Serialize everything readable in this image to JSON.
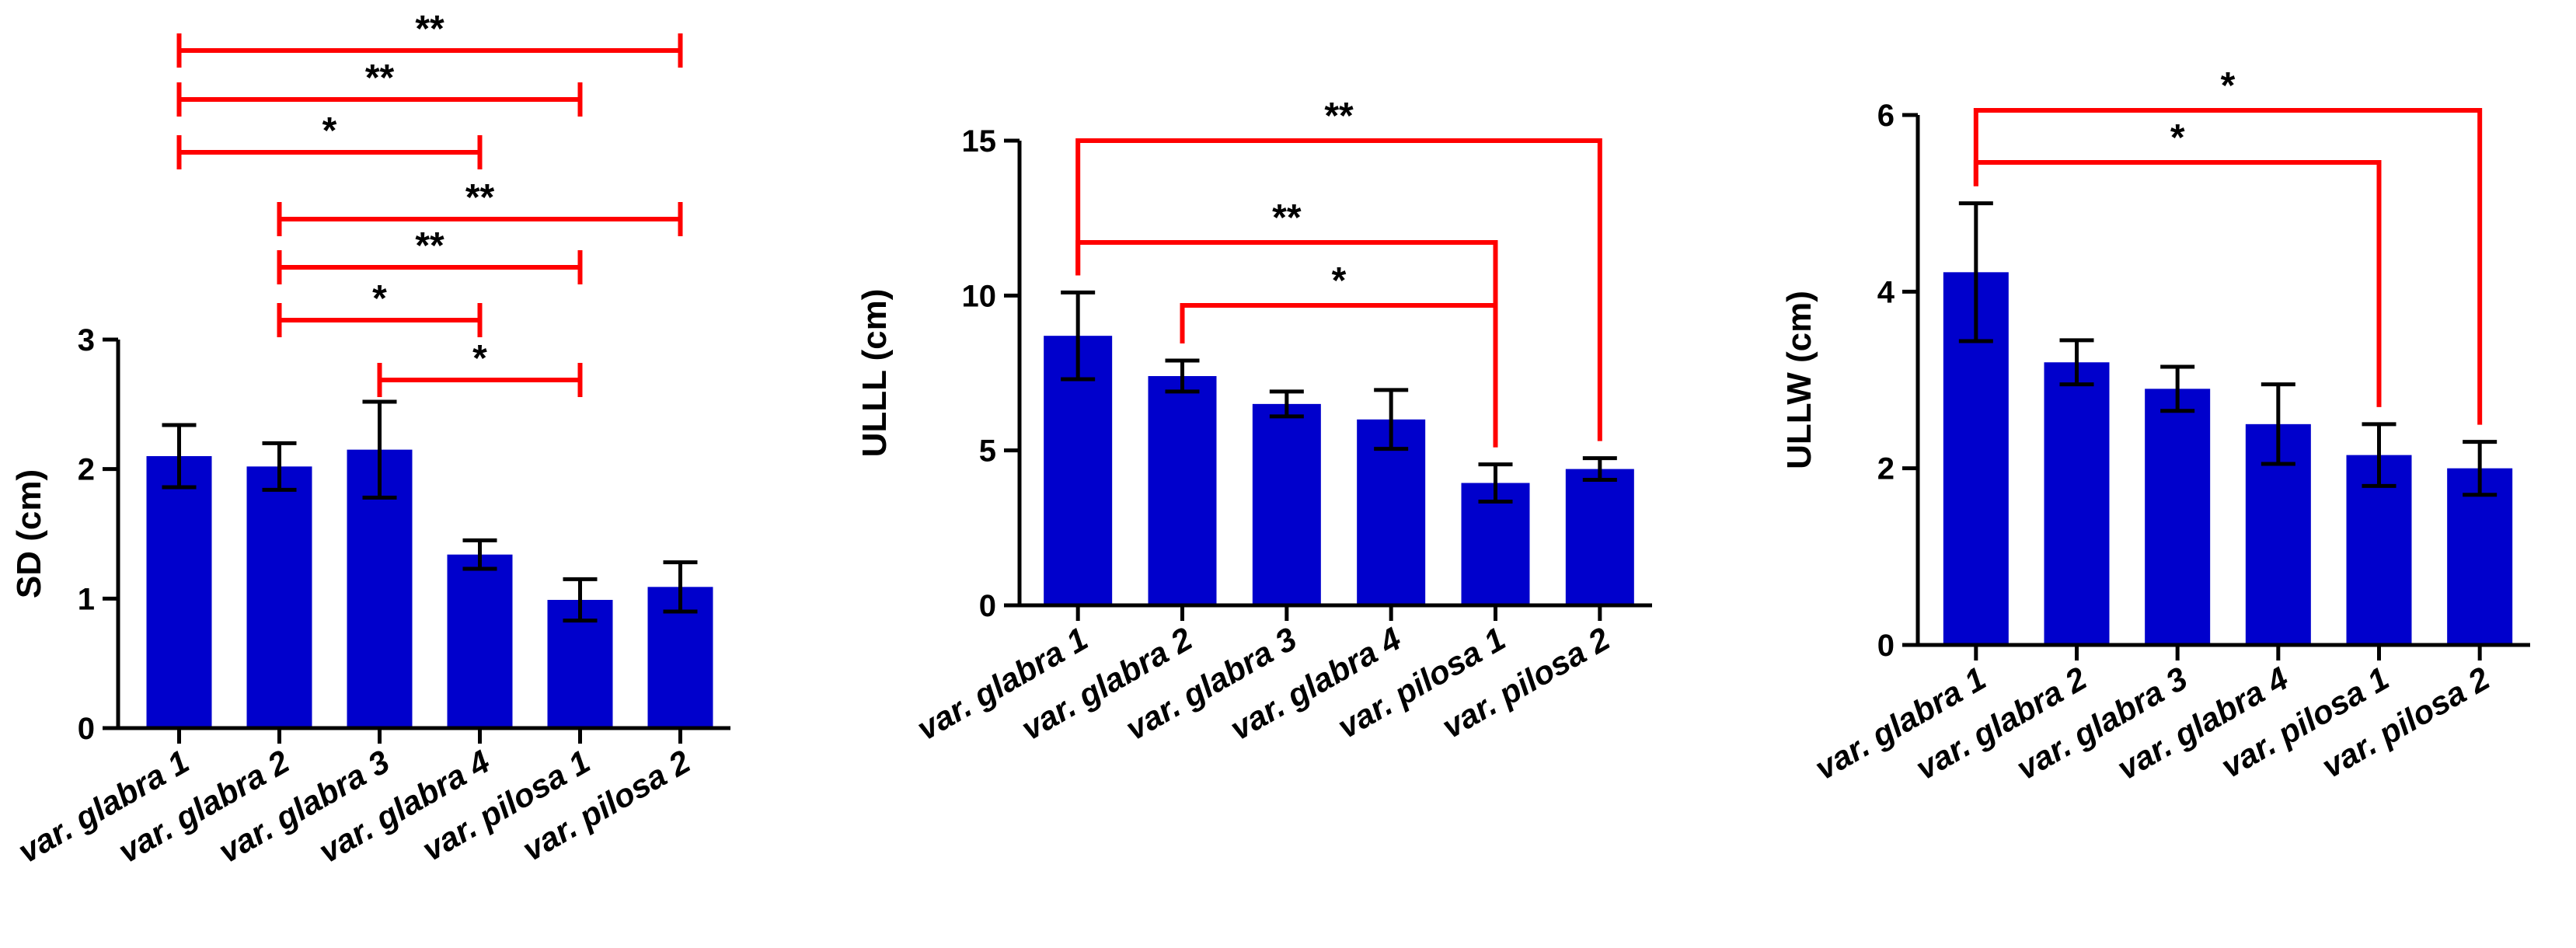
{
  "chart_data": [
    {
      "type": "bar",
      "categories": [
        "var. glabra 1",
        "var. glabra 2",
        "var. glabra 3",
        "var. glabra 4",
        "var. pilosa 1",
        "var. pilosa 2"
      ],
      "values": [
        2.1,
        2.02,
        2.15,
        1.34,
        0.99,
        1.09
      ],
      "errors": [
        0.24,
        0.18,
        0.37,
        0.11,
        0.16,
        0.19
      ],
      "ylabel": "SD (cm)",
      "ylim": [
        0,
        3
      ],
      "yticks": [
        0,
        1,
        2,
        3
      ],
      "bar_color": "#0000CC",
      "bracket_color": "#FF0000",
      "bracket_style": "horizontal",
      "comparisons": [
        {
          "from": 0,
          "to": 5,
          "label": "**"
        },
        {
          "from": 0,
          "to": 4,
          "label": "**"
        },
        {
          "from": 0,
          "to": 3,
          "label": "*"
        },
        {
          "from": 1,
          "to": 5,
          "label": "**"
        },
        {
          "from": 1,
          "to": 4,
          "label": "**"
        },
        {
          "from": 1,
          "to": 3,
          "label": "*"
        },
        {
          "from": 2,
          "to": 4,
          "label": "*"
        }
      ]
    },
    {
      "type": "bar",
      "categories": [
        "var. glabra 1",
        "var. glabra 2",
        "var. glabra 3",
        "var. glabra 4",
        "var. pilosa 1",
        "var. pilosa 2"
      ],
      "values": [
        8.7,
        7.4,
        6.5,
        6.0,
        3.95,
        4.4
      ],
      "errors": [
        1.4,
        0.5,
        0.4,
        0.95,
        0.6,
        0.35
      ],
      "ylabel": "ULLL (cm)",
      "ylim": [
        0,
        15
      ],
      "yticks": [
        0,
        5,
        10,
        15
      ],
      "bar_color": "#0000CC",
      "bracket_color": "#FF0000",
      "bracket_style": "vertical",
      "comparisons": [
        {
          "from": 0,
          "to": 5,
          "label": "**"
        },
        {
          "from": 0,
          "to": 4,
          "label": "**"
        },
        {
          "from": 1,
          "to": 4,
          "label": "*"
        }
      ]
    },
    {
      "type": "bar",
      "categories": [
        "var. glabra 1",
        "var. glabra 2",
        "var. glabra 3",
        "var. glabra 4",
        "var. pilosa 1",
        "var. pilosa 2"
      ],
      "values": [
        4.22,
        3.2,
        2.9,
        2.5,
        2.15,
        2.0
      ],
      "errors": [
        0.78,
        0.25,
        0.25,
        0.45,
        0.35,
        0.3
      ],
      "ylabel": "ULLW (cm)",
      "ylim": [
        0,
        6
      ],
      "yticks": [
        0,
        2,
        4,
        6
      ],
      "bar_color": "#0000CC",
      "bracket_color": "#FF0000",
      "bracket_style": "vertical",
      "comparisons": [
        {
          "from": 0,
          "to": 5,
          "label": "*"
        },
        {
          "from": 0,
          "to": 4,
          "label": "*"
        }
      ]
    }
  ]
}
